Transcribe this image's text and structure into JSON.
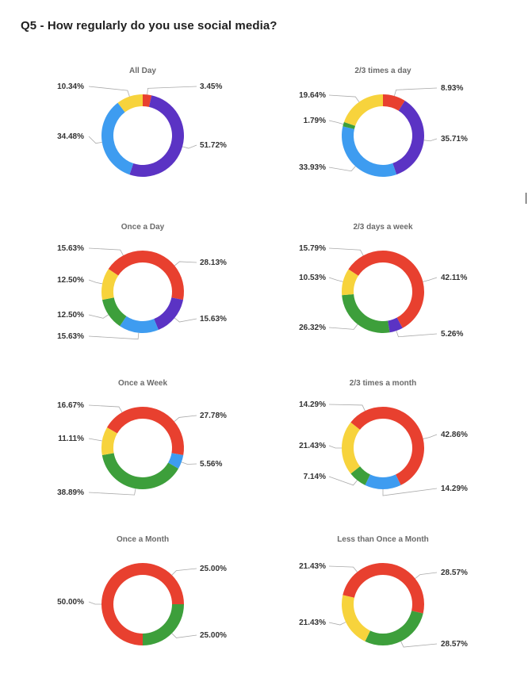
{
  "page": {
    "title": "Q5 - How regularly do you use social media?"
  },
  "colors": {
    "red": "#e8402f",
    "purple": "#5b33c4",
    "blue": "#3e9cf0",
    "green": "#3d9f3b",
    "yellow": "#f7d33c"
  },
  "chart_data": [
    {
      "type": "pie",
      "title": "All Day",
      "slices": [
        {
          "label": "3.45%",
          "value": 3.45,
          "color": "red"
        },
        {
          "label": "51.72%",
          "value": 51.72,
          "color": "purple"
        },
        {
          "label": "34.48%",
          "value": 34.48,
          "color": "blue"
        },
        {
          "label": "10.34%",
          "value": 10.34,
          "color": "yellow"
        }
      ]
    },
    {
      "type": "pie",
      "title": "2/3 times a day",
      "slices": [
        {
          "label": "8.93%",
          "value": 8.93,
          "color": "red"
        },
        {
          "label": "35.71%",
          "value": 35.71,
          "color": "purple"
        },
        {
          "label": "33.93%",
          "value": 33.93,
          "color": "blue"
        },
        {
          "label": "1.79%",
          "value": 1.79,
          "color": "green"
        },
        {
          "label": "19.64%",
          "value": 19.64,
          "color": "yellow"
        }
      ]
    },
    {
      "type": "pie",
      "title": "Once a Day",
      "slices": [
        {
          "label": "28.13%",
          "value": 28.13,
          "color": "red"
        },
        {
          "label": "15.63%",
          "value": 15.63,
          "color": "purple"
        },
        {
          "label": "15.63%",
          "value": 15.63,
          "color": "blue"
        },
        {
          "label": "12.50%",
          "value": 12.5,
          "color": "green"
        },
        {
          "label": "12.50%",
          "value": 12.5,
          "color": "yellow"
        },
        {
          "label": "15.63%",
          "value": 15.63,
          "color": "red"
        }
      ]
    },
    {
      "type": "pie",
      "title": "2/3 days a week",
      "slices": [
        {
          "label": "42.11%",
          "value": 42.11,
          "color": "red"
        },
        {
          "label": "5.26%",
          "value": 5.26,
          "color": "purple"
        },
        {
          "label": "26.32%",
          "value": 26.32,
          "color": "green"
        },
        {
          "label": "10.53%",
          "value": 10.53,
          "color": "yellow"
        },
        {
          "label": "15.79%",
          "value": 15.79,
          "color": "red"
        }
      ]
    },
    {
      "type": "pie",
      "title": "Once a Week",
      "slices": [
        {
          "label": "27.78%",
          "value": 27.78,
          "color": "red"
        },
        {
          "label": "5.56%",
          "value": 5.56,
          "color": "blue"
        },
        {
          "label": "38.89%",
          "value": 38.89,
          "color": "green"
        },
        {
          "label": "11.11%",
          "value": 11.11,
          "color": "yellow"
        },
        {
          "label": "16.67%",
          "value": 16.67,
          "color": "red"
        }
      ]
    },
    {
      "type": "pie",
      "title": "2/3 times a month",
      "slices": [
        {
          "label": "42.86%",
          "value": 42.86,
          "color": "red"
        },
        {
          "label": "14.29%",
          "value": 14.29,
          "color": "blue"
        },
        {
          "label": "7.14%",
          "value": 7.14,
          "color": "green"
        },
        {
          "label": "21.43%",
          "value": 21.43,
          "color": "yellow"
        },
        {
          "label": "14.29%",
          "value": 14.29,
          "color": "red"
        }
      ]
    },
    {
      "type": "pie",
      "title": "Once a Month",
      "slices": [
        {
          "label": "25.00%",
          "value": 25,
          "color": "red"
        },
        {
          "label": "25.00%",
          "value": 25,
          "color": "green"
        },
        {
          "label": "50.00%",
          "value": 50,
          "color": "red"
        }
      ]
    },
    {
      "type": "pie",
      "title": "Less than Once a Month",
      "slices": [
        {
          "label": "28.57%",
          "value": 28.57,
          "color": "red"
        },
        {
          "label": "28.57%",
          "value": 28.57,
          "color": "green"
        },
        {
          "label": "21.43%",
          "value": 21.43,
          "color": "yellow"
        },
        {
          "label": "21.43%",
          "value": 21.43,
          "color": "red"
        }
      ]
    }
  ]
}
